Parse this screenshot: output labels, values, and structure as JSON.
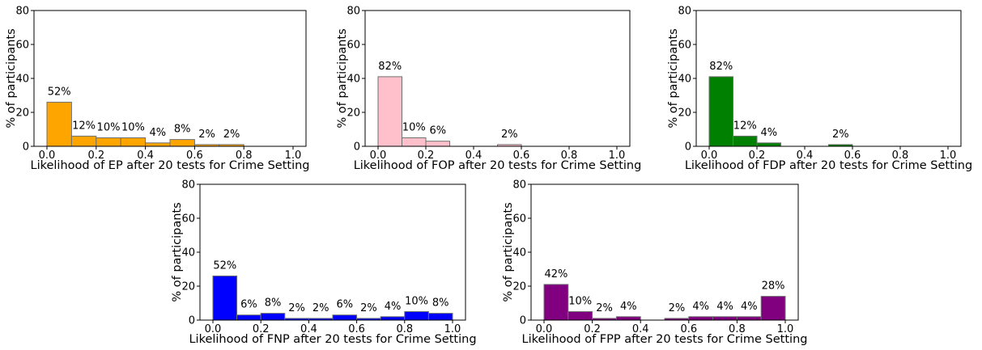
{
  "figure": {
    "ylabel": "% of participants"
  },
  "chart_data": [
    {
      "type": "bar",
      "xlabel": "Likelihood of EP after 20 tests for Crime Setting",
      "ylabel": "% of participants",
      "color": "#FFA500",
      "xlim": [
        0.0,
        1.0
      ],
      "ylim": [
        0,
        80
      ],
      "xticks": [
        "0.0",
        "0.2",
        "0.4",
        "0.6",
        "0.8",
        "1.0"
      ],
      "yticks": [
        "0",
        "20",
        "40",
        "60",
        "80"
      ],
      "bins": [
        {
          "x0": 0.0,
          "x1": 0.1,
          "value": 26,
          "label": "52%"
        },
        {
          "x0": 0.1,
          "x1": 0.2,
          "value": 6,
          "label": "12%"
        },
        {
          "x0": 0.2,
          "x1": 0.3,
          "value": 5,
          "label": "10%"
        },
        {
          "x0": 0.3,
          "x1": 0.4,
          "value": 5,
          "label": "10%"
        },
        {
          "x0": 0.4,
          "x1": 0.5,
          "value": 2,
          "label": "4%"
        },
        {
          "x0": 0.5,
          "x1": 0.6,
          "value": 4,
          "label": "8%"
        },
        {
          "x0": 0.6,
          "x1": 0.7,
          "value": 1,
          "label": "2%"
        },
        {
          "x0": 0.7,
          "x1": 0.8,
          "value": 1,
          "label": "2%"
        }
      ]
    },
    {
      "type": "bar",
      "xlabel": "Likelihood of FOP after 20 tests for Crime Setting",
      "ylabel": "% of participants",
      "color": "#FFC0CB",
      "xlim": [
        0.0,
        1.0
      ],
      "ylim": [
        0,
        80
      ],
      "xticks": [
        "0.0",
        "0.2",
        "0.4",
        "0.6",
        "0.8",
        "1.0"
      ],
      "yticks": [
        "0",
        "20",
        "40",
        "60",
        "80"
      ],
      "bins": [
        {
          "x0": 0.0,
          "x1": 0.1,
          "value": 41,
          "label": "82%"
        },
        {
          "x0": 0.1,
          "x1": 0.2,
          "value": 5,
          "label": "10%"
        },
        {
          "x0": 0.2,
          "x1": 0.3,
          "value": 3,
          "label": "6%"
        },
        {
          "x0": 0.5,
          "x1": 0.6,
          "value": 1,
          "label": "2%"
        }
      ]
    },
    {
      "type": "bar",
      "xlabel": "Likelihood of FDP after 20 tests for Crime Setting",
      "ylabel": "% of participants",
      "color": "#008000",
      "xlim": [
        0.0,
        1.0
      ],
      "ylim": [
        0,
        80
      ],
      "xticks": [
        "0.0",
        "0.2",
        "0.4",
        "0.6",
        "0.8",
        "1.0"
      ],
      "yticks": [
        "0",
        "20",
        "40",
        "60",
        "80"
      ],
      "bins": [
        {
          "x0": 0.0,
          "x1": 0.1,
          "value": 41,
          "label": "82%"
        },
        {
          "x0": 0.1,
          "x1": 0.2,
          "value": 6,
          "label": "12%"
        },
        {
          "x0": 0.2,
          "x1": 0.3,
          "value": 2,
          "label": "4%"
        },
        {
          "x0": 0.5,
          "x1": 0.6,
          "value": 1,
          "label": "2%"
        }
      ]
    },
    {
      "type": "bar",
      "xlabel": "Likelihood of FNP after 20 tests for Crime Setting",
      "ylabel": "% of participants",
      "color": "#0000FF",
      "xlim": [
        0.0,
        1.0
      ],
      "ylim": [
        0,
        80
      ],
      "xticks": [
        "0.0",
        "0.2",
        "0.4",
        "0.6",
        "0.8",
        "1.0"
      ],
      "yticks": [
        "0",
        "20",
        "40",
        "60",
        "80"
      ],
      "bins": [
        {
          "x0": 0.0,
          "x1": 0.1,
          "value": 26,
          "label": "52%"
        },
        {
          "x0": 0.1,
          "x1": 0.2,
          "value": 3,
          "label": "6%"
        },
        {
          "x0": 0.2,
          "x1": 0.3,
          "value": 4,
          "label": "8%"
        },
        {
          "x0": 0.3,
          "x1": 0.4,
          "value": 1,
          "label": "2%"
        },
        {
          "x0": 0.4,
          "x1": 0.5,
          "value": 1,
          "label": "2%"
        },
        {
          "x0": 0.5,
          "x1": 0.6,
          "value": 3,
          "label": "6%"
        },
        {
          "x0": 0.6,
          "x1": 0.7,
          "value": 1,
          "label": "2%"
        },
        {
          "x0": 0.7,
          "x1": 0.8,
          "value": 2,
          "label": "4%"
        },
        {
          "x0": 0.8,
          "x1": 0.9,
          "value": 5,
          "label": "10%"
        },
        {
          "x0": 0.9,
          "x1": 1.0,
          "value": 4,
          "label": "8%"
        }
      ]
    },
    {
      "type": "bar",
      "xlabel": "Likelihood of FPP after 20 tests for Crime Setting",
      "ylabel": "% of participants",
      "color": "#800080",
      "xlim": [
        0.0,
        1.0
      ],
      "ylim": [
        0,
        80
      ],
      "xticks": [
        "0.0",
        "0.2",
        "0.4",
        "0.6",
        "0.8",
        "1.0"
      ],
      "yticks": [
        "0",
        "20",
        "40",
        "60",
        "80"
      ],
      "bins": [
        {
          "x0": 0.0,
          "x1": 0.1,
          "value": 21,
          "label": "42%"
        },
        {
          "x0": 0.1,
          "x1": 0.2,
          "value": 5,
          "label": "10%"
        },
        {
          "x0": 0.2,
          "x1": 0.3,
          "value": 1,
          "label": "2%"
        },
        {
          "x0": 0.3,
          "x1": 0.4,
          "value": 2,
          "label": "4%"
        },
        {
          "x0": 0.5,
          "x1": 0.6,
          "value": 1,
          "label": "2%"
        },
        {
          "x0": 0.6,
          "x1": 0.7,
          "value": 2,
          "label": "4%"
        },
        {
          "x0": 0.7,
          "x1": 0.8,
          "value": 2,
          "label": "4%"
        },
        {
          "x0": 0.8,
          "x1": 0.9,
          "value": 2,
          "label": "4%"
        },
        {
          "x0": 0.9,
          "x1": 1.0,
          "value": 14,
          "label": "28%"
        }
      ]
    }
  ]
}
